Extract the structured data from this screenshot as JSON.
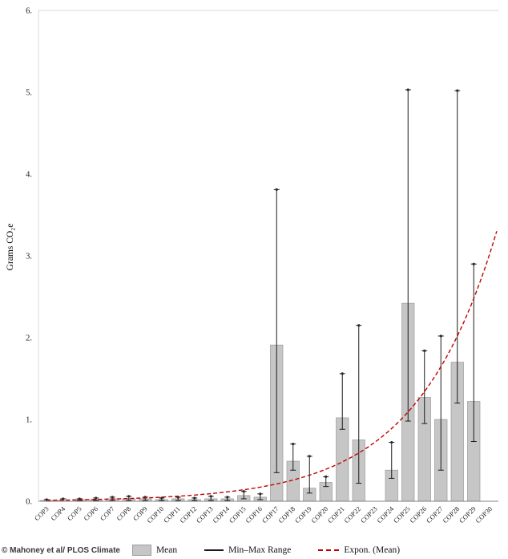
{
  "figure": {
    "ylabel": "Grams CO₂e",
    "watermark": "© Mahoney et al/ PLOS Climate"
  },
  "legend": {
    "mean_label": "Mean",
    "range_label": "Min–Max Range",
    "trend_label": "Expon. (Mean)"
  },
  "colors": {
    "bar_fill": "#c6c6c6",
    "bar_stroke": "#9e9e9e",
    "whisker": "#1a1a1a",
    "trend": "#c00000",
    "axis": "#808080",
    "grid": "#d9d9d9",
    "text": "#1a1a1a"
  },
  "chart_data": {
    "type": "bar",
    "title": "",
    "xlabel": "",
    "ylabel": "Grams CO₂e",
    "ylim": [
      0,
      6
    ],
    "ytick_labels": [
      "0.",
      "1.",
      "2.",
      "3.",
      "4.",
      "5.",
      "6."
    ],
    "grid": false,
    "legend_position": "bottom",
    "categories": [
      "COP3",
      "COP4",
      "COP5",
      "COP6",
      "COP7",
      "COP8",
      "COP9",
      "COP10",
      "COP11",
      "COP12",
      "COP13",
      "COP14",
      "COP15",
      "COP16",
      "COP17",
      "COP18",
      "COP19",
      "COP20",
      "COP21",
      "COP22",
      "COP23",
      "COP24",
      "COP25",
      "COP26",
      "COP27",
      "COP28",
      "COP29",
      "COP30"
    ],
    "series": [
      {
        "name": "Mean",
        "values": [
          0.01,
          0.01,
          0.02,
          0.02,
          0.03,
          0.03,
          0.03,
          0.02,
          0.03,
          0.02,
          0.03,
          0.03,
          0.07,
          0.05,
          1.91,
          0.49,
          0.16,
          0.23,
          1.02,
          0.75,
          null,
          0.38,
          2.42,
          1.27,
          1.0,
          1.7,
          1.22,
          null
        ]
      },
      {
        "name": "Min",
        "values": [
          0.0,
          0.0,
          0.01,
          0.01,
          0.01,
          0.01,
          0.01,
          0.01,
          0.01,
          0.01,
          0.01,
          0.01,
          0.03,
          0.02,
          0.35,
          0.38,
          0.1,
          0.18,
          0.88,
          0.22,
          null,
          0.28,
          0.98,
          0.95,
          0.38,
          1.2,
          0.73,
          null
        ]
      },
      {
        "name": "Max",
        "values": [
          0.02,
          0.03,
          0.03,
          0.04,
          0.05,
          0.06,
          0.05,
          0.04,
          0.05,
          0.04,
          0.06,
          0.05,
          0.12,
          0.09,
          3.81,
          0.7,
          0.55,
          0.3,
          1.56,
          2.15,
          null,
          0.72,
          5.03,
          1.84,
          2.02,
          5.02,
          2.9,
          null
        ]
      }
    ],
    "trend": {
      "type": "exponential",
      "label": "Expon. (Mean)",
      "a": 0.012,
      "b": 0.205
    }
  }
}
